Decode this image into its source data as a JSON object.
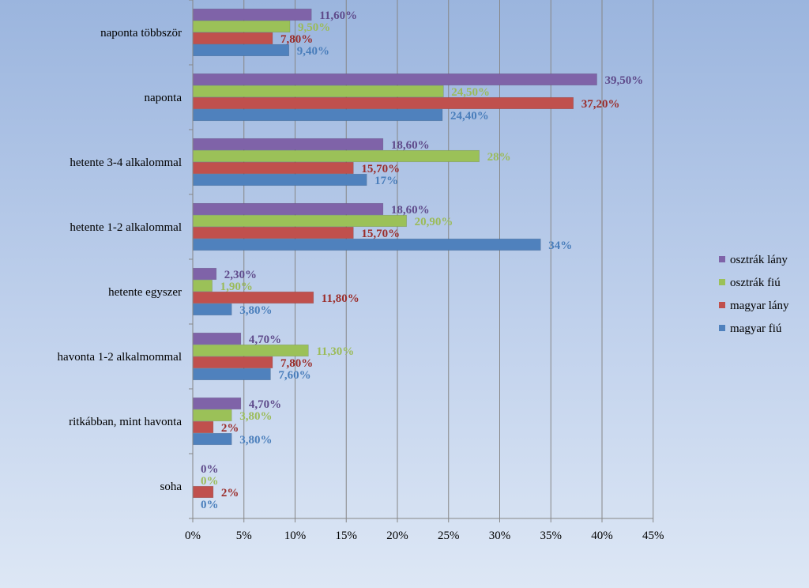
{
  "chart_data": {
    "type": "bar",
    "orientation": "horizontal",
    "categories": [
      "naponta többször",
      "naponta",
      "hetente 3-4 alkalommal",
      "hetente 1-2 alkalommal",
      "hetente egyszer",
      "havonta 1-2 alkalmommal",
      "ritkábban, mint havonta",
      "soha"
    ],
    "series": [
      {
        "name": "osztrák lány",
        "color": "#7f63a8",
        "values": [
          11.6,
          39.5,
          18.6,
          18.6,
          2.3,
          4.7,
          4.7,
          0
        ],
        "labels": [
          "11,60%",
          "39,50%",
          "18,60%",
          "18,60%",
          "2,30%",
          "4,70%",
          "4,70%",
          "0%"
        ]
      },
      {
        "name": "osztrák fiú",
        "color": "#9bc158",
        "values": [
          9.5,
          24.5,
          28,
          20.9,
          1.9,
          11.3,
          3.8,
          0
        ],
        "labels": [
          "9,50%",
          "24,50%",
          "28%",
          "20,90%",
          "1,90%",
          "11,30%",
          "3,80%",
          "0%"
        ]
      },
      {
        "name": "magyar lány",
        "color": "#c0504d",
        "values": [
          7.8,
          37.2,
          15.7,
          15.7,
          11.8,
          7.8,
          2,
          2
        ],
        "labels": [
          "7,80%",
          "37,20%",
          "15,70%",
          "15,70%",
          "11,80%",
          "7,80%",
          "2%",
          "2%"
        ]
      },
      {
        "name": "magyar fiú",
        "color": "#4f81bd",
        "values": [
          9.4,
          24.4,
          17,
          34,
          3.8,
          7.6,
          3.8,
          0
        ],
        "labels": [
          "9,40%",
          "24,40%",
          "17%",
          "34%",
          "3,80%",
          "7,60%",
          "3,80%",
          "0%"
        ]
      }
    ],
    "data_label_colors": {
      "osztrák lány": "#5f4b8b",
      "osztrák fiú": "#9bbb59",
      "magyar lány": "#9b2d2a",
      "magyar fiú": "#4a7ebb"
    },
    "xlim": [
      0,
      45
    ],
    "x_ticks": [
      0,
      5,
      10,
      15,
      20,
      25,
      30,
      35,
      40,
      45
    ],
    "x_tick_labels": [
      "0%",
      "5%",
      "10%",
      "15%",
      "20%",
      "25%",
      "30%",
      "35%",
      "40%",
      "45%"
    ],
    "grid": true,
    "legend": [
      "osztrák lány",
      "osztrák fiú",
      "magyar lány",
      "magyar fiú"
    ],
    "legend_position": "right",
    "title": "",
    "xlabel": "",
    "ylabel": ""
  }
}
